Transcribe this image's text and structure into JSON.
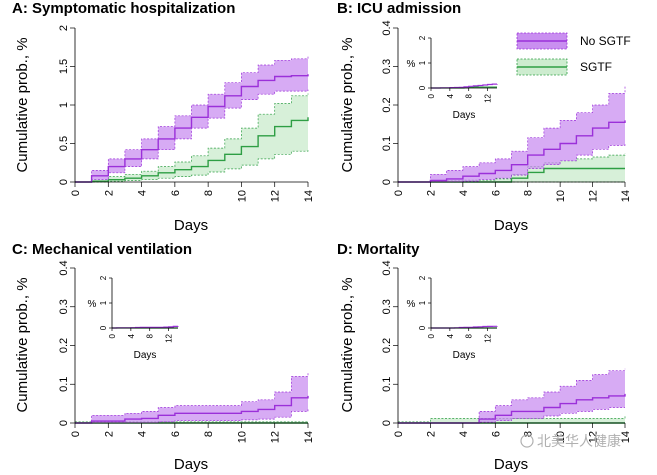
{
  "colors": {
    "no_sgtf": "#9b30d9",
    "no_sgtf_band": "#c98ff0",
    "sgtf": "#2e9e44",
    "sgtf_band": "#cdeccf"
  },
  "legend": {
    "entries": [
      "No SGTF",
      "SGTF"
    ]
  },
  "watermark": "北美华人健康",
  "chart_data": [
    {
      "id": "A",
      "type": "line",
      "title": "A: Symptomatic hospitalization",
      "xlabel": "Days",
      "ylabel": "Cumulative prob., %",
      "xlim": [
        0,
        14
      ],
      "ylim": [
        0,
        2
      ],
      "xticks": [
        "0",
        "2",
        "4",
        "6",
        "8",
        "10",
        "12",
        "14"
      ],
      "yticks": [
        "0",
        "0.5",
        "1",
        "1.5",
        "2"
      ],
      "series": [
        {
          "name": "No SGTF",
          "x": [
            0,
            1,
            2,
            3,
            4,
            5,
            6,
            7,
            8,
            9,
            10,
            11,
            12,
            13,
            14
          ],
          "y": [
            0,
            0.08,
            0.2,
            0.3,
            0.42,
            0.56,
            0.7,
            0.84,
            0.98,
            1.12,
            1.24,
            1.32,
            1.37,
            1.38,
            1.4
          ],
          "lower": [
            0,
            0.03,
            0.12,
            0.2,
            0.3,
            0.42,
            0.56,
            0.7,
            0.83,
            0.96,
            1.07,
            1.14,
            1.18,
            1.18,
            1.2
          ],
          "upper": [
            0,
            0.15,
            0.3,
            0.42,
            0.56,
            0.72,
            0.86,
            1.0,
            1.14,
            1.29,
            1.42,
            1.52,
            1.58,
            1.6,
            1.65
          ]
        },
        {
          "name": "SGTF",
          "x": [
            0,
            1,
            2,
            3,
            4,
            5,
            6,
            7,
            8,
            9,
            10,
            11,
            12,
            13,
            14
          ],
          "y": [
            0,
            0.01,
            0.03,
            0.05,
            0.08,
            0.12,
            0.16,
            0.2,
            0.28,
            0.36,
            0.46,
            0.6,
            0.72,
            0.8,
            0.84
          ],
          "lower": [
            0,
            0,
            0.01,
            0.02,
            0.03,
            0.05,
            0.07,
            0.09,
            0.13,
            0.17,
            0.22,
            0.3,
            0.36,
            0.4,
            0.42
          ],
          "upper": [
            0,
            0.03,
            0.07,
            0.1,
            0.14,
            0.2,
            0.26,
            0.34,
            0.44,
            0.56,
            0.7,
            0.88,
            1.02,
            1.12,
            1.15
          ]
        }
      ]
    },
    {
      "id": "B",
      "type": "line",
      "title": "B: ICU admission",
      "xlabel": "Days",
      "ylabel": "Cumulative prob., %",
      "xlim": [
        0,
        14
      ],
      "ylim": [
        0,
        0.4
      ],
      "xticks": [
        "0",
        "2",
        "4",
        "6",
        "8",
        "10",
        "12",
        "14"
      ],
      "yticks": [
        "0",
        "0.1",
        "0.2",
        "0.3",
        "0.4"
      ],
      "inset": {
        "xlabel": "Days",
        "ylabel": "%",
        "ylim": [
          0,
          2
        ],
        "xticks": [
          "0",
          "4",
          "8",
          "12"
        ],
        "yticks": [
          "0",
          "1",
          "2"
        ]
      },
      "series": [
        {
          "name": "No SGTF",
          "x": [
            0,
            2,
            3,
            4,
            5,
            6,
            7,
            8,
            9,
            10,
            11,
            12,
            13,
            14
          ],
          "y": [
            0,
            0.004,
            0.008,
            0.015,
            0.022,
            0.03,
            0.045,
            0.07,
            0.085,
            0.1,
            0.12,
            0.14,
            0.155,
            0.16
          ],
          "lower": [
            0,
            0,
            0,
            0.002,
            0.006,
            0.01,
            0.018,
            0.035,
            0.045,
            0.055,
            0.07,
            0.085,
            0.095,
            0.1
          ],
          "upper": [
            0,
            0.02,
            0.03,
            0.04,
            0.05,
            0.06,
            0.08,
            0.115,
            0.14,
            0.16,
            0.18,
            0.2,
            0.23,
            0.25
          ]
        },
        {
          "name": "SGTF",
          "x": [
            0,
            2,
            3,
            4,
            5,
            6,
            7,
            8,
            9,
            10,
            11,
            12,
            13,
            14
          ],
          "y": [
            0,
            0,
            0,
            0,
            0,
            0,
            0.01,
            0.025,
            0.035,
            0.035,
            0.035,
            0.035,
            0.035,
            0.035
          ],
          "lower": [
            0,
            0,
            0,
            0,
            0,
            0,
            0,
            0,
            0,
            0,
            0,
            0,
            0,
            0
          ],
          "upper": [
            0,
            0.003,
            0.003,
            0.005,
            0.005,
            0.008,
            0.02,
            0.04,
            0.05,
            0.055,
            0.06,
            0.065,
            0.07,
            0.075
          ]
        }
      ]
    },
    {
      "id": "C",
      "type": "line",
      "title": "C: Mechanical ventilation",
      "xlabel": "Days",
      "ylabel": "Cumulative prob., %",
      "xlim": [
        0,
        14
      ],
      "ylim": [
        0,
        0.4
      ],
      "xticks": [
        "0",
        "2",
        "4",
        "6",
        "8",
        "10",
        "12",
        "14"
      ],
      "yticks": [
        "0",
        "0.1",
        "0.2",
        "0.3",
        "0.4"
      ],
      "inset": {
        "xlabel": "Days",
        "ylabel": "%",
        "ylim": [
          0,
          2
        ],
        "xticks": [
          "0",
          "4",
          "8",
          "12"
        ],
        "yticks": [
          "0",
          "1",
          "2"
        ]
      },
      "series": [
        {
          "name": "No SGTF",
          "x": [
            0,
            1,
            2,
            3,
            4,
            5,
            6,
            7,
            8,
            9,
            10,
            11,
            12,
            13,
            14
          ],
          "y": [
            0,
            0.005,
            0.005,
            0.01,
            0.012,
            0.02,
            0.025,
            0.025,
            0.025,
            0.025,
            0.03,
            0.035,
            0.045,
            0.065,
            0.07
          ],
          "lower": [
            0,
            0,
            0,
            0,
            0,
            0.003,
            0.006,
            0.006,
            0.006,
            0.006,
            0.008,
            0.01,
            0.015,
            0.03,
            0.035
          ],
          "upper": [
            0,
            0.02,
            0.02,
            0.025,
            0.03,
            0.04,
            0.045,
            0.045,
            0.045,
            0.045,
            0.055,
            0.06,
            0.08,
            0.12,
            0.13
          ]
        },
        {
          "name": "SGTF",
          "x": [
            0,
            14
          ],
          "y": [
            0,
            0
          ],
          "lower": [
            0,
            0
          ],
          "upper": [
            0.003,
            0.003
          ]
        }
      ]
    },
    {
      "id": "D",
      "type": "line",
      "title": "D: Mortality",
      "xlabel": "Days",
      "ylabel": "Cumulative prob., %",
      "xlim": [
        0,
        14
      ],
      "ylim": [
        0,
        0.4
      ],
      "xticks": [
        "0",
        "2",
        "4",
        "6",
        "8",
        "10",
        "12",
        "14"
      ],
      "yticks": [
        "0",
        "0.1",
        "0.2",
        "0.3",
        "0.4"
      ],
      "inset": {
        "xlabel": "Days",
        "ylabel": "%",
        "ylim": [
          0,
          2
        ],
        "xticks": [
          "0",
          "4",
          "8",
          "12"
        ],
        "yticks": [
          "0",
          "1",
          "2"
        ]
      },
      "series": [
        {
          "name": "No SGTF",
          "x": [
            0,
            1,
            2,
            3,
            4,
            5,
            6,
            7,
            8,
            9,
            10,
            11,
            12,
            13,
            14
          ],
          "y": [
            0,
            0,
            0,
            0,
            0,
            0.01,
            0.02,
            0.03,
            0.03,
            0.04,
            0.05,
            0.06,
            0.065,
            0.07,
            0.075
          ],
          "lower": [
            0,
            0,
            0,
            0,
            0,
            0.002,
            0.006,
            0.012,
            0.012,
            0.018,
            0.025,
            0.03,
            0.035,
            0.04,
            0.04
          ],
          "upper": [
            0,
            0,
            0,
            0,
            0,
            0.03,
            0.045,
            0.06,
            0.065,
            0.08,
            0.095,
            0.11,
            0.125,
            0.135,
            0.14
          ]
        },
        {
          "name": "SGTF",
          "x": [
            0,
            2,
            14
          ],
          "y": [
            0,
            0,
            0
          ],
          "lower": [
            0,
            0,
            0
          ],
          "upper": [
            0.003,
            0.012,
            0.02
          ]
        }
      ]
    }
  ]
}
